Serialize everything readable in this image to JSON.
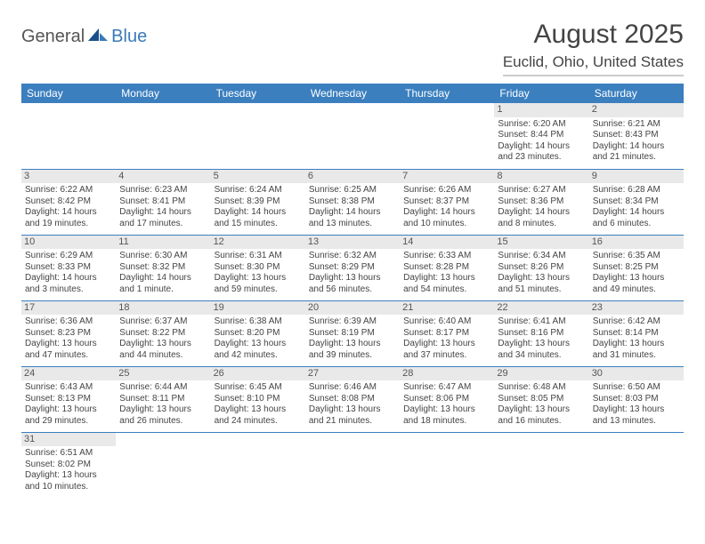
{
  "logo": {
    "general": "General",
    "blue": "Blue"
  },
  "header": {
    "month_title": "August 2025",
    "location": "Euclid, Ohio, United States"
  },
  "colors": {
    "header_bg": "#3b7fbf",
    "header_text": "#ffffff",
    "day_bg": "#e9e9e9",
    "border": "#3b7fbf",
    "text": "#444444"
  },
  "weekdays": [
    "Sunday",
    "Monday",
    "Tuesday",
    "Wednesday",
    "Thursday",
    "Friday",
    "Saturday"
  ],
  "weeks": [
    [
      null,
      null,
      null,
      null,
      null,
      {
        "n": "1",
        "sr": "Sunrise: 6:20 AM",
        "ss": "Sunset: 8:44 PM",
        "dl": "Daylight: 14 hours and 23 minutes."
      },
      {
        "n": "2",
        "sr": "Sunrise: 6:21 AM",
        "ss": "Sunset: 8:43 PM",
        "dl": "Daylight: 14 hours and 21 minutes."
      }
    ],
    [
      {
        "n": "3",
        "sr": "Sunrise: 6:22 AM",
        "ss": "Sunset: 8:42 PM",
        "dl": "Daylight: 14 hours and 19 minutes."
      },
      {
        "n": "4",
        "sr": "Sunrise: 6:23 AM",
        "ss": "Sunset: 8:41 PM",
        "dl": "Daylight: 14 hours and 17 minutes."
      },
      {
        "n": "5",
        "sr": "Sunrise: 6:24 AM",
        "ss": "Sunset: 8:39 PM",
        "dl": "Daylight: 14 hours and 15 minutes."
      },
      {
        "n": "6",
        "sr": "Sunrise: 6:25 AM",
        "ss": "Sunset: 8:38 PM",
        "dl": "Daylight: 14 hours and 13 minutes."
      },
      {
        "n": "7",
        "sr": "Sunrise: 6:26 AM",
        "ss": "Sunset: 8:37 PM",
        "dl": "Daylight: 14 hours and 10 minutes."
      },
      {
        "n": "8",
        "sr": "Sunrise: 6:27 AM",
        "ss": "Sunset: 8:36 PM",
        "dl": "Daylight: 14 hours and 8 minutes."
      },
      {
        "n": "9",
        "sr": "Sunrise: 6:28 AM",
        "ss": "Sunset: 8:34 PM",
        "dl": "Daylight: 14 hours and 6 minutes."
      }
    ],
    [
      {
        "n": "10",
        "sr": "Sunrise: 6:29 AM",
        "ss": "Sunset: 8:33 PM",
        "dl": "Daylight: 14 hours and 3 minutes."
      },
      {
        "n": "11",
        "sr": "Sunrise: 6:30 AM",
        "ss": "Sunset: 8:32 PM",
        "dl": "Daylight: 14 hours and 1 minute."
      },
      {
        "n": "12",
        "sr": "Sunrise: 6:31 AM",
        "ss": "Sunset: 8:30 PM",
        "dl": "Daylight: 13 hours and 59 minutes."
      },
      {
        "n": "13",
        "sr": "Sunrise: 6:32 AM",
        "ss": "Sunset: 8:29 PM",
        "dl": "Daylight: 13 hours and 56 minutes."
      },
      {
        "n": "14",
        "sr": "Sunrise: 6:33 AM",
        "ss": "Sunset: 8:28 PM",
        "dl": "Daylight: 13 hours and 54 minutes."
      },
      {
        "n": "15",
        "sr": "Sunrise: 6:34 AM",
        "ss": "Sunset: 8:26 PM",
        "dl": "Daylight: 13 hours and 51 minutes."
      },
      {
        "n": "16",
        "sr": "Sunrise: 6:35 AM",
        "ss": "Sunset: 8:25 PM",
        "dl": "Daylight: 13 hours and 49 minutes."
      }
    ],
    [
      {
        "n": "17",
        "sr": "Sunrise: 6:36 AM",
        "ss": "Sunset: 8:23 PM",
        "dl": "Daylight: 13 hours and 47 minutes."
      },
      {
        "n": "18",
        "sr": "Sunrise: 6:37 AM",
        "ss": "Sunset: 8:22 PM",
        "dl": "Daylight: 13 hours and 44 minutes."
      },
      {
        "n": "19",
        "sr": "Sunrise: 6:38 AM",
        "ss": "Sunset: 8:20 PM",
        "dl": "Daylight: 13 hours and 42 minutes."
      },
      {
        "n": "20",
        "sr": "Sunrise: 6:39 AM",
        "ss": "Sunset: 8:19 PM",
        "dl": "Daylight: 13 hours and 39 minutes."
      },
      {
        "n": "21",
        "sr": "Sunrise: 6:40 AM",
        "ss": "Sunset: 8:17 PM",
        "dl": "Daylight: 13 hours and 37 minutes."
      },
      {
        "n": "22",
        "sr": "Sunrise: 6:41 AM",
        "ss": "Sunset: 8:16 PM",
        "dl": "Daylight: 13 hours and 34 minutes."
      },
      {
        "n": "23",
        "sr": "Sunrise: 6:42 AM",
        "ss": "Sunset: 8:14 PM",
        "dl": "Daylight: 13 hours and 31 minutes."
      }
    ],
    [
      {
        "n": "24",
        "sr": "Sunrise: 6:43 AM",
        "ss": "Sunset: 8:13 PM",
        "dl": "Daylight: 13 hours and 29 minutes."
      },
      {
        "n": "25",
        "sr": "Sunrise: 6:44 AM",
        "ss": "Sunset: 8:11 PM",
        "dl": "Daylight: 13 hours and 26 minutes."
      },
      {
        "n": "26",
        "sr": "Sunrise: 6:45 AM",
        "ss": "Sunset: 8:10 PM",
        "dl": "Daylight: 13 hours and 24 minutes."
      },
      {
        "n": "27",
        "sr": "Sunrise: 6:46 AM",
        "ss": "Sunset: 8:08 PM",
        "dl": "Daylight: 13 hours and 21 minutes."
      },
      {
        "n": "28",
        "sr": "Sunrise: 6:47 AM",
        "ss": "Sunset: 8:06 PM",
        "dl": "Daylight: 13 hours and 18 minutes."
      },
      {
        "n": "29",
        "sr": "Sunrise: 6:48 AM",
        "ss": "Sunset: 8:05 PM",
        "dl": "Daylight: 13 hours and 16 minutes."
      },
      {
        "n": "30",
        "sr": "Sunrise: 6:50 AM",
        "ss": "Sunset: 8:03 PM",
        "dl": "Daylight: 13 hours and 13 minutes."
      }
    ],
    [
      {
        "n": "31",
        "sr": "Sunrise: 6:51 AM",
        "ss": "Sunset: 8:02 PM",
        "dl": "Daylight: 13 hours and 10 minutes."
      },
      null,
      null,
      null,
      null,
      null,
      null
    ]
  ]
}
